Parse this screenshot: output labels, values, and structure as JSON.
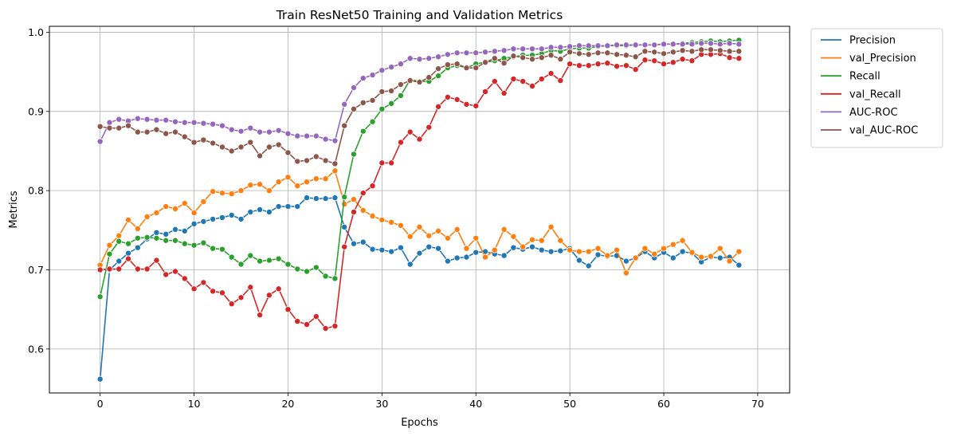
{
  "chart_data": {
    "type": "line",
    "title": "Train ResNet50 Training and Validation Metrics",
    "xlabel": "Epochs",
    "ylabel": "Metrics",
    "xlim": [
      -5.4,
      73.4
    ],
    "ylim": [
      0.5445,
      1.0075
    ],
    "xticks": [
      0,
      10,
      20,
      30,
      40,
      50,
      60,
      70
    ],
    "yticks": [
      0.6,
      0.7,
      0.8,
      0.9,
      1.0
    ],
    "xtick_labels": [
      "0",
      "10",
      "20",
      "30",
      "40",
      "50",
      "60",
      "70"
    ],
    "ytick_labels": [
      "0.6",
      "0.7",
      "0.8",
      "0.9",
      "1.0"
    ],
    "grid": true,
    "marker": "circle",
    "legend_position": "outside-top-right",
    "series": [
      {
        "name": "Precision",
        "color": "#1f77b4",
        "values": [
          0.562,
          0.7,
          0.711,
          0.721,
          0.728,
          0.739,
          0.747,
          0.745,
          0.751,
          0.749,
          0.758,
          0.761,
          0.764,
          0.766,
          0.769,
          0.764,
          0.773,
          0.776,
          0.773,
          0.78,
          0.78,
          0.78,
          0.791,
          0.79,
          0.79,
          0.791,
          0.754,
          0.733,
          0.735,
          0.726,
          0.725,
          0.723,
          0.728,
          0.707,
          0.721,
          0.729,
          0.727,
          0.711,
          0.715,
          0.716,
          0.722,
          0.723,
          0.72,
          0.718,
          0.728,
          0.726,
          0.729,
          0.725,
          0.723,
          0.724,
          0.727,
          0.712,
          0.705,
          0.719,
          0.717,
          0.718,
          0.711,
          0.715,
          0.723,
          0.715,
          0.722,
          0.715,
          0.723,
          0.721,
          0.71,
          0.716,
          0.715,
          0.716,
          0.706
        ]
      },
      {
        "name": "val_Precision",
        "color": "#ff7f0e",
        "values": [
          0.706,
          0.731,
          0.743,
          0.763,
          0.752,
          0.767,
          0.772,
          0.78,
          0.777,
          0.784,
          0.772,
          0.786,
          0.799,
          0.797,
          0.796,
          0.8,
          0.807,
          0.808,
          0.8,
          0.811,
          0.817,
          0.806,
          0.811,
          0.815,
          0.815,
          0.825,
          0.783,
          0.789,
          0.775,
          0.768,
          0.763,
          0.76,
          0.756,
          0.742,
          0.754,
          0.743,
          0.749,
          0.74,
          0.751,
          0.727,
          0.74,
          0.716,
          0.725,
          0.751,
          0.742,
          0.729,
          0.738,
          0.737,
          0.754,
          0.737,
          0.725,
          0.723,
          0.723,
          0.727,
          0.718,
          0.725,
          0.696,
          0.715,
          0.727,
          0.72,
          0.727,
          0.732,
          0.737,
          0.722,
          0.716,
          0.717,
          0.727,
          0.711,
          0.723
        ]
      },
      {
        "name": "Recall",
        "color": "#2ca02c",
        "values": [
          0.666,
          0.72,
          0.736,
          0.733,
          0.74,
          0.741,
          0.74,
          0.737,
          0.737,
          0.733,
          0.731,
          0.734,
          0.727,
          0.726,
          0.716,
          0.707,
          0.718,
          0.711,
          0.712,
          0.714,
          0.707,
          0.701,
          0.698,
          0.703,
          0.692,
          0.689,
          0.792,
          0.846,
          0.875,
          0.887,
          0.903,
          0.91,
          0.92,
          0.94,
          0.938,
          0.938,
          0.945,
          0.955,
          0.958,
          0.955,
          0.96,
          0.962,
          0.964,
          0.967,
          0.969,
          0.971,
          0.971,
          0.973,
          0.977,
          0.976,
          0.979,
          0.98,
          0.98,
          0.982,
          0.983,
          0.983,
          0.983,
          0.984,
          0.984,
          0.984,
          0.985,
          0.985,
          0.986,
          0.987,
          0.988,
          0.989,
          0.988,
          0.989,
          0.99
        ]
      },
      {
        "name": "val_Recall",
        "color": "#d62728",
        "values": [
          0.7,
          0.701,
          0.701,
          0.714,
          0.701,
          0.701,
          0.712,
          0.694,
          0.698,
          0.689,
          0.676,
          0.684,
          0.673,
          0.671,
          0.657,
          0.665,
          0.678,
          0.643,
          0.668,
          0.676,
          0.65,
          0.635,
          0.631,
          0.641,
          0.626,
          0.629,
          0.729,
          0.773,
          0.797,
          0.806,
          0.835,
          0.835,
          0.861,
          0.874,
          0.865,
          0.88,
          0.906,
          0.918,
          0.915,
          0.909,
          0.907,
          0.925,
          0.938,
          0.923,
          0.941,
          0.938,
          0.932,
          0.941,
          0.948,
          0.939,
          0.96,
          0.958,
          0.958,
          0.96,
          0.961,
          0.957,
          0.958,
          0.953,
          0.965,
          0.964,
          0.96,
          0.962,
          0.966,
          0.964,
          0.972,
          0.972,
          0.973,
          0.968,
          0.967
        ]
      },
      {
        "name": "AUC-ROC",
        "color": "#9467bd",
        "values": [
          0.862,
          0.886,
          0.89,
          0.888,
          0.891,
          0.89,
          0.889,
          0.889,
          0.887,
          0.886,
          0.886,
          0.885,
          0.884,
          0.882,
          0.877,
          0.875,
          0.879,
          0.874,
          0.874,
          0.876,
          0.872,
          0.869,
          0.869,
          0.869,
          0.865,
          0.863,
          0.909,
          0.93,
          0.942,
          0.946,
          0.952,
          0.956,
          0.96,
          0.967,
          0.966,
          0.967,
          0.969,
          0.972,
          0.974,
          0.974,
          0.974,
          0.975,
          0.976,
          0.977,
          0.979,
          0.979,
          0.979,
          0.979,
          0.981,
          0.981,
          0.982,
          0.983,
          0.983,
          0.983,
          0.983,
          0.984,
          0.984,
          0.984,
          0.984,
          0.984,
          0.985,
          0.985,
          0.985,
          0.985,
          0.986,
          0.986,
          0.985,
          0.986,
          0.985
        ]
      },
      {
        "name": "val_AUC-ROC",
        "color": "#8c564b",
        "values": [
          0.881,
          0.879,
          0.879,
          0.882,
          0.874,
          0.874,
          0.877,
          0.872,
          0.874,
          0.868,
          0.861,
          0.864,
          0.86,
          0.855,
          0.85,
          0.855,
          0.861,
          0.844,
          0.855,
          0.858,
          0.848,
          0.837,
          0.838,
          0.843,
          0.838,
          0.834,
          0.882,
          0.903,
          0.911,
          0.914,
          0.925,
          0.926,
          0.934,
          0.939,
          0.937,
          0.943,
          0.954,
          0.959,
          0.96,
          0.955,
          0.955,
          0.962,
          0.967,
          0.961,
          0.97,
          0.968,
          0.966,
          0.968,
          0.971,
          0.966,
          0.975,
          0.973,
          0.972,
          0.974,
          0.974,
          0.972,
          0.971,
          0.969,
          0.976,
          0.975,
          0.973,
          0.975,
          0.977,
          0.976,
          0.978,
          0.978,
          0.977,
          0.976,
          0.976
        ]
      }
    ]
  }
}
